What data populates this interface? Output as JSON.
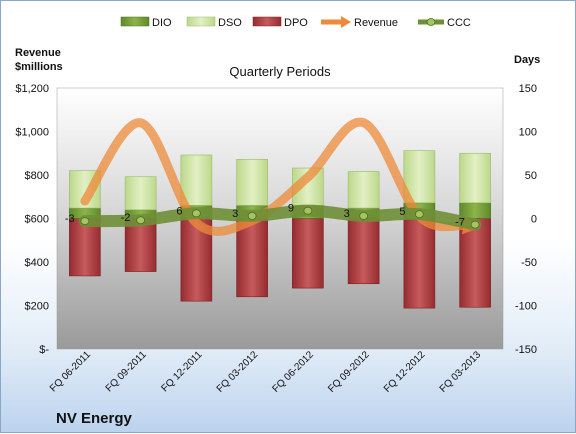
{
  "company": "NV Energy",
  "chart_data": {
    "type": "bar",
    "title": "Quarterly Periods",
    "left_axis_title_line1": "Revenue",
    "left_axis_title_line2": "$millions",
    "right_axis_title": "Days",
    "left_axis": {
      "min": 0,
      "max": 1200,
      "step": 200,
      "tick_labels": [
        "$-",
        "$200",
        "$400",
        "$600",
        "$800",
        "$1,000",
        "$1,200"
      ]
    },
    "right_axis": {
      "min": -150,
      "max": 150,
      "step": 50,
      "tick_labels": [
        "-150",
        "-100",
        "-50",
        "0",
        "50",
        "100",
        "150"
      ]
    },
    "categories": [
      "FQ 06-2011",
      "FQ 09-2011",
      "FQ 12-2011",
      "FQ 03-2012",
      "FQ 06-2012",
      "FQ 09-2012",
      "FQ 12-2012",
      "FQ 03-2013"
    ],
    "legend": [
      "DIO",
      "DSO",
      "DPO",
      "Revenue",
      "CCC"
    ],
    "legend_position": "top",
    "series": [
      {
        "name": "DIO",
        "axis": "right",
        "color": "#77a03a",
        "values": [
          12,
          10,
          15,
          15,
          15,
          12,
          18,
          18
        ]
      },
      {
        "name": "DSO",
        "axis": "right",
        "color": "#d2e6a8",
        "values": [
          43,
          38,
          58,
          53,
          43,
          42,
          60,
          57
        ]
      },
      {
        "name": "DPO",
        "axis": "right",
        "color": "#b13c3f",
        "values": [
          -66,
          -61,
          -95,
          -90,
          -80,
          -75,
          -103,
          -102
        ]
      },
      {
        "name": "Revenue",
        "axis": "left",
        "color": "#ee8a3a",
        "values": [
          680,
          1040,
          580,
          590,
          790,
          1040,
          610,
          560
        ]
      },
      {
        "name": "CCC",
        "axis": "right",
        "color": "#6f8f36",
        "values": [
          -3,
          -2,
          6,
          3,
          9,
          3,
          5,
          -7
        ]
      }
    ],
    "data_labels": [
      "-3",
      "-2",
      "6",
      "3",
      "9",
      "3",
      "5",
      "-7"
    ],
    "grid": false
  }
}
